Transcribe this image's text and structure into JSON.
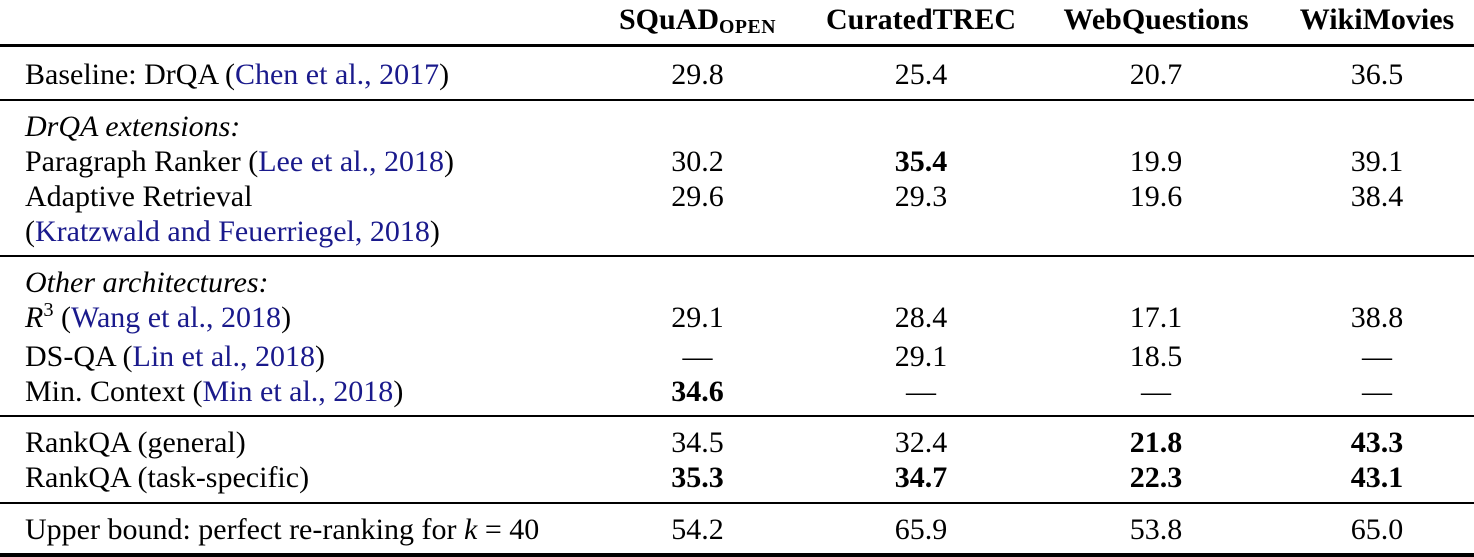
{
  "colors": {
    "citation": "#1a1a8c",
    "text": "#000000",
    "rule": "#000000",
    "background": "#ffffff"
  },
  "table": {
    "columns": [
      {
        "id": "model",
        "label": ""
      },
      {
        "id": "squad",
        "label": "SQuAD",
        "subscript": "OPEN"
      },
      {
        "id": "curatedtrec",
        "label": "CuratedTREC"
      },
      {
        "id": "webquestions",
        "label": "WebQuestions"
      },
      {
        "id": "wikimovies",
        "label": "WikiMovies"
      }
    ],
    "missing_value_glyph": "—",
    "sections": [
      {
        "id": "baseline",
        "rows": [
          {
            "label": [
              [
                "t",
                "Baseline: DrQA ("
              ],
              [
                "c",
                "Chen et al., 2017"
              ],
              [
                "t",
                ")"
              ]
            ],
            "values": [
              "29.8",
              "25.4",
              "20.7",
              "36.5"
            ]
          }
        ]
      },
      {
        "id": "drqa-extensions",
        "rows": [
          {
            "label": [
              [
                "i",
                "DrQA extensions:"
              ]
            ],
            "values": [
              "",
              "",
              "",
              ""
            ]
          },
          {
            "label": [
              [
                "t",
                "Paragraph Ranker ("
              ],
              [
                "c",
                "Lee et al., 2018"
              ],
              [
                "t",
                ")"
              ]
            ],
            "values": [
              "30.2",
              {
                "v": "35.4",
                "b": true
              },
              "19.9",
              "39.1"
            ]
          },
          {
            "label": [
              [
                "t",
                "Adaptive Retrieval"
              ]
            ],
            "values": [
              "29.6",
              "29.3",
              "19.6",
              "38.4"
            ]
          },
          {
            "label": [
              [
                "t",
                "("
              ],
              [
                "c",
                "Kratzwald and Feuerriegel, 2018"
              ],
              [
                "t",
                ")"
              ]
            ],
            "values": [
              "",
              "",
              "",
              ""
            ]
          }
        ]
      },
      {
        "id": "other-architectures",
        "rows": [
          {
            "label": [
              [
                "i",
                "Other architectures:"
              ]
            ],
            "values": [
              "",
              "",
              "",
              ""
            ]
          },
          {
            "label": [
              [
                "m",
                "R"
              ],
              [
                "sup",
                "3"
              ],
              [
                "t",
                " ("
              ],
              [
                "c",
                "Wang et al., 2018"
              ],
              [
                "t",
                ")"
              ]
            ],
            "values": [
              "29.1",
              "28.4",
              "17.1",
              "38.8"
            ]
          },
          {
            "label": [
              [
                "t",
                "DS-QA ("
              ],
              [
                "c",
                "Lin et al., 2018"
              ],
              [
                "t",
                ")"
              ]
            ],
            "values": [
              "—",
              "29.1",
              "18.5",
              "—"
            ]
          },
          {
            "label": [
              [
                "t",
                "Min. Context ("
              ],
              [
                "c",
                "Min et al., 2018"
              ],
              [
                "t",
                ")"
              ]
            ],
            "values": [
              {
                "v": "34.6",
                "b": true
              },
              "—",
              "—",
              "—"
            ]
          }
        ]
      },
      {
        "id": "rankqa",
        "rows": [
          {
            "label": [
              [
                "t",
                "RankQA (general)"
              ]
            ],
            "values": [
              "34.5",
              "32.4",
              {
                "v": "21.8",
                "b": true
              },
              {
                "v": "43.3",
                "b": true
              }
            ]
          },
          {
            "label": [
              [
                "t",
                "RankQA (task-specific)"
              ]
            ],
            "values": [
              {
                "v": "35.3",
                "b": true
              },
              {
                "v": "34.7",
                "b": true
              },
              {
                "v": "22.3",
                "b": true
              },
              {
                "v": "43.1",
                "b": true
              }
            ]
          }
        ]
      },
      {
        "id": "upper-bound",
        "rows": [
          {
            "label": [
              [
                "t",
                "Upper bound: perfect re-ranking for "
              ],
              [
                "m",
                "k"
              ],
              [
                "t",
                " = 40"
              ]
            ],
            "values": [
              "54.2",
              "65.9",
              "53.8",
              "65.0"
            ]
          }
        ]
      }
    ]
  }
}
